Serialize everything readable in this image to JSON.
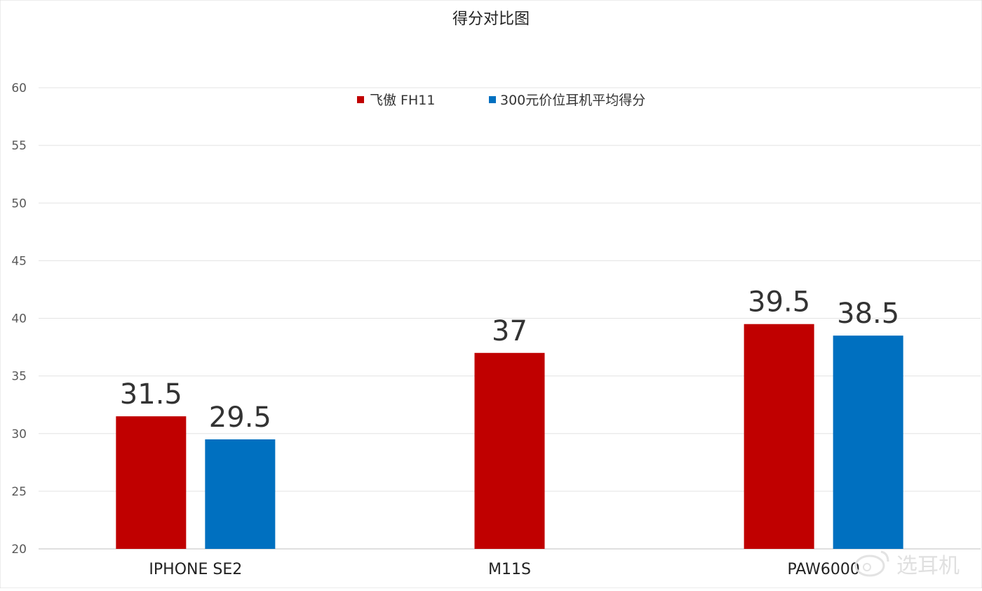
{
  "chart_data": {
    "type": "bar",
    "title": "得分对比图",
    "categories": [
      "IPHONE SE2",
      "M11S",
      "PAW6000"
    ],
    "series": [
      {
        "name": "飞傲 FH11",
        "color": "#c00000",
        "values": [
          31.5,
          37,
          39.5
        ]
      },
      {
        "name": "300元价位耳机平均得分",
        "color": "#0070c0",
        "values": [
          29.5,
          null,
          38.5
        ]
      }
    ],
    "ylim": [
      20,
      60
    ],
    "yticks": [
      "20",
      "25",
      "30",
      "35",
      "40",
      "45",
      "50",
      "55",
      "60"
    ],
    "data_labels": [
      [
        "31.5",
        "37",
        "39.5"
      ],
      [
        "29.5",
        "",
        "38.5"
      ]
    ],
    "grid": true,
    "legend": "top-center"
  },
  "watermark": {
    "text": "选耳机",
    "icon": "weibo-icon"
  }
}
